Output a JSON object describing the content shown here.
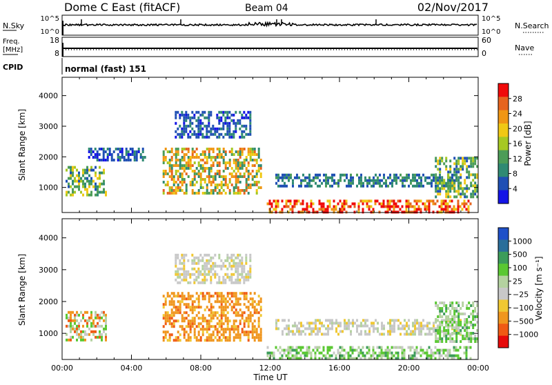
{
  "header": {
    "title": "Dome C East (fitACF)",
    "beam": "Beam 04",
    "date": "02/Nov/2017"
  },
  "noise_panel": {
    "left_label": "N.Sky",
    "left_ticks": [
      "10^5",
      "10^0"
    ],
    "right_label": "N.Search",
    "right_ticks": [
      "10^5",
      "10^0"
    ]
  },
  "freq_panel": {
    "left_label_1": "Freq.",
    "left_label_2": "[MHz]",
    "left_ticks": [
      "18",
      "8"
    ],
    "right_label": "Nave",
    "right_ticks": [
      "60",
      "0"
    ]
  },
  "cpid": {
    "label": "CPID",
    "value": "normal (fast) 151"
  },
  "colors": {
    "power_scale": [
      "#1414e6",
      "#1f4fb4",
      "#2f8a73",
      "#4c9c57",
      "#a6c823",
      "#f0c814",
      "#f09614",
      "#e6641e",
      "#f00a0a"
    ],
    "velocity_scale": [
      "#e60a0a",
      "#f05a14",
      "#f0961e",
      "#f0c832",
      "#c8c8c8",
      "#b4d2a0",
      "#5ac832",
      "#3c9c5a",
      "#2a6e9a",
      "#1f50c8"
    ]
  },
  "chart_data": [
    {
      "type": "heatmap",
      "name": "power",
      "ylabel": "Slant Range [km]",
      "ylim": [
        180,
        4600
      ],
      "yticks": [
        1000,
        2000,
        3000,
        4000
      ],
      "xlim": [
        0,
        24
      ],
      "colorbar": {
        "label": "Power [dB]",
        "range": [
          0,
          32
        ],
        "ticks": [
          "4",
          "8",
          "12",
          "16",
          "20",
          "24",
          "28"
        ]
      },
      "regions": [
        {
          "t0": 0.2,
          "t1": 2.5,
          "r0": 750,
          "r1": 1700,
          "level": "mid"
        },
        {
          "t0": 1.5,
          "t1": 4.8,
          "r0": 1900,
          "r1": 2300,
          "level": "low"
        },
        {
          "t0": 5.8,
          "t1": 11.5,
          "r0": 800,
          "r1": 2300,
          "level": "mid-high"
        },
        {
          "t0": 6.5,
          "t1": 10.8,
          "r0": 2600,
          "r1": 3500,
          "level": "low"
        },
        {
          "t0": 11.8,
          "t1": 23.6,
          "r0": 180,
          "r1": 600,
          "level": "high"
        },
        {
          "t0": 12.3,
          "t1": 23.0,
          "r0": 1000,
          "r1": 1450,
          "level": "low-mid"
        },
        {
          "t0": 21.5,
          "t1": 24.0,
          "r0": 700,
          "r1": 2000,
          "level": "mid"
        }
      ]
    },
    {
      "type": "heatmap",
      "name": "velocity",
      "ylabel": "Slant Range [km]",
      "ylim": [
        180,
        4600
      ],
      "yticks": [
        1000,
        2000,
        3000,
        4000
      ],
      "xlim": [
        0,
        24
      ],
      "xlabel": "Time UT",
      "xticks": [
        "00:00",
        "04:00",
        "08:00",
        "12:00",
        "16:00",
        "20:00",
        "00:00"
      ],
      "colorbar": {
        "label": "Velocity [m s⁻¹]",
        "ticks": [
          "1000",
          "500",
          "100",
          "25",
          "−25",
          "−100",
          "−500",
          "−1000"
        ]
      },
      "regions": [
        {
          "t0": 0.2,
          "t1": 2.5,
          "r0": 750,
          "r1": 1700,
          "level": "mixed"
        },
        {
          "t0": 5.8,
          "t1": 11.5,
          "r0": 800,
          "r1": 2300,
          "level": "negative"
        },
        {
          "t0": 6.5,
          "t1": 10.8,
          "r0": 2600,
          "r1": 3500,
          "level": "near-zero"
        },
        {
          "t0": 11.8,
          "t1": 23.6,
          "r0": 180,
          "r1": 600,
          "level": "positive"
        },
        {
          "t0": 12.3,
          "t1": 23.0,
          "r0": 1000,
          "r1": 1450,
          "level": "near-zero"
        },
        {
          "t0": 21.5,
          "t1": 24.0,
          "r0": 700,
          "r1": 2000,
          "level": "positive"
        }
      ]
    }
  ]
}
